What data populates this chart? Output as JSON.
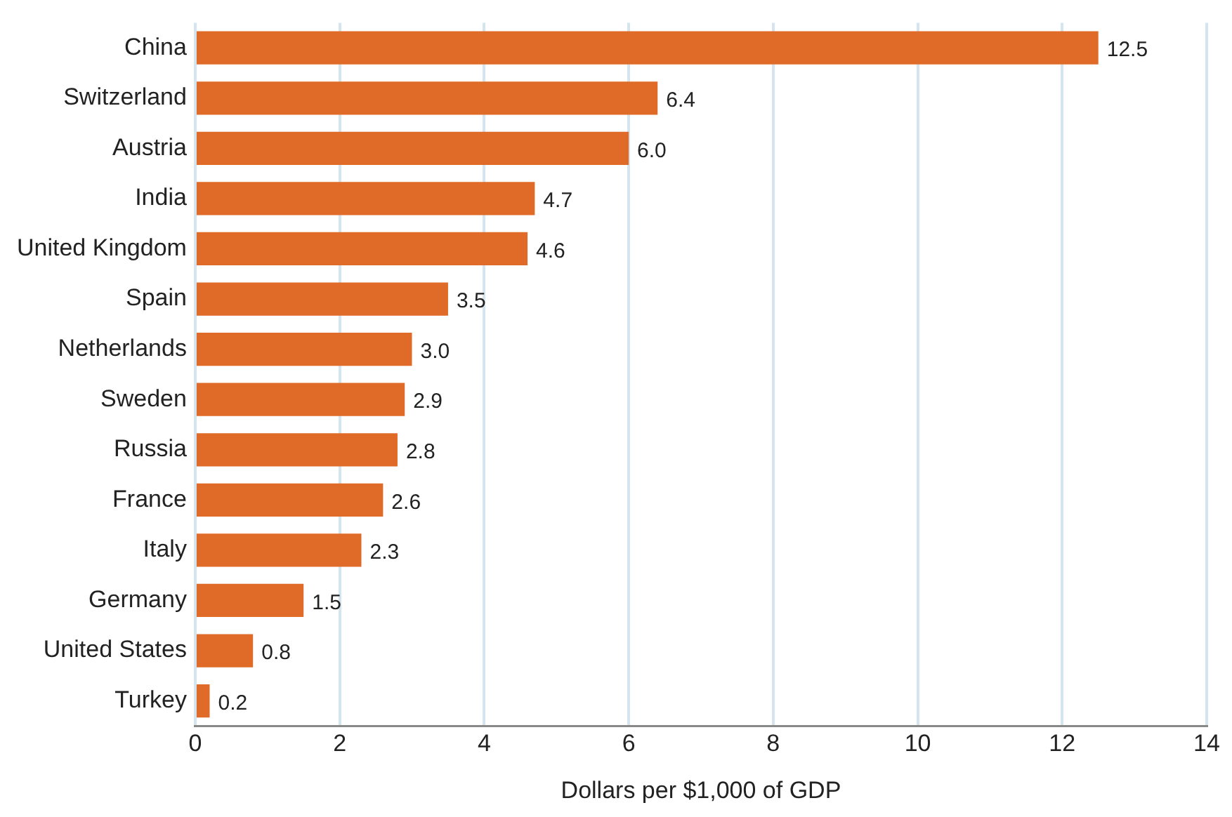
{
  "chart_data": {
    "type": "bar",
    "orientation": "horizontal",
    "xlabel": "Dollars per $1,000 of GDP",
    "categories": [
      "China",
      "Switzerland",
      "Austria",
      "India",
      "United Kingdom",
      "Spain",
      "Netherlands",
      "Sweden",
      "Russia",
      "France",
      "Italy",
      "Germany",
      "United States",
      "Turkey"
    ],
    "values": [
      12.5,
      6.4,
      6.0,
      4.7,
      4.6,
      3.5,
      3.0,
      2.9,
      2.8,
      2.6,
      2.3,
      1.5,
      0.8,
      0.2
    ],
    "value_labels": [
      "12.5",
      "6.4",
      "6.0",
      "4.7",
      "4.6",
      "3.5",
      "3.0",
      "2.9",
      "2.8",
      "2.6",
      "2.3",
      "1.5",
      "0.8",
      "0.2"
    ],
    "color": "#e06a27",
    "xlim": [
      0,
      14
    ],
    "xticks": [
      0,
      2,
      4,
      6,
      8,
      10,
      12,
      14
    ],
    "grid": "x",
    "legend": false
  }
}
